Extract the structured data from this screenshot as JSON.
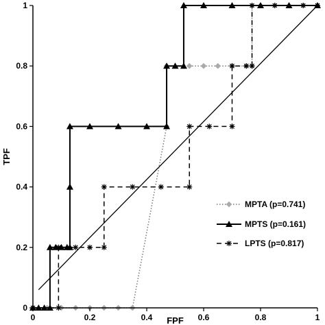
{
  "chart_data": {
    "type": "line",
    "xlabel": "FPF",
    "ylabel": "TPF",
    "xlim": [
      0,
      1
    ],
    "ylim": [
      0,
      1
    ],
    "x_ticks": [
      "0",
      "0.2",
      "0.4",
      "0.6",
      "0.8",
      "1"
    ],
    "y_ticks": [
      "0",
      "0.2",
      "0.4",
      "0.6",
      "0.8",
      "1"
    ],
    "grid": false,
    "legend_position": "bottom-right",
    "reference_line": {
      "x": [
        0.02,
        1.0
      ],
      "y": [
        0.06,
        1.0
      ]
    },
    "series": [
      {
        "name": "MPTA (p=0.741)",
        "line_style": "dotted",
        "marker": "diamond",
        "color": "#aaaaaa",
        "x": [
          0,
          0.05,
          0.1,
          0.15,
          0.2,
          0.25,
          0.3,
          0.35,
          0.35,
          0.47,
          0.47,
          0.55,
          0.6,
          0.65,
          0.7,
          0.75,
          0.77,
          0.77,
          0.8,
          0.85,
          0.9,
          0.95,
          1.0
        ],
        "y": [
          0,
          0,
          0,
          0,
          0,
          0,
          0,
          0,
          0.0,
          0.6,
          0.8,
          0.8,
          0.8,
          0.8,
          0.8,
          0.8,
          0.8,
          1.0,
          1.0,
          1.0,
          1.0,
          1.0,
          1.0
        ]
      },
      {
        "name": "MPTS (p=0.161)",
        "line_style": "solid",
        "marker": "triangle",
        "color": "#000000",
        "x": [
          0,
          0.02,
          0.04,
          0.06,
          0.06,
          0.08,
          0.1,
          0.12,
          0.13,
          0.13,
          0.13,
          0.2,
          0.3,
          0.4,
          0.47,
          0.47,
          0.5,
          0.53,
          0.53,
          0.6,
          0.7,
          0.8,
          0.9,
          1.0
        ],
        "y": [
          0,
          0,
          0,
          0,
          0.2,
          0.2,
          0.2,
          0.2,
          0.2,
          0.4,
          0.6,
          0.6,
          0.6,
          0.6,
          0.6,
          0.8,
          0.8,
          0.8,
          1.0,
          1.0,
          1.0,
          1.0,
          1.0,
          1.0
        ]
      },
      {
        "name": "LPTS (p=0.817)",
        "line_style": "dashed",
        "marker": "asterisk",
        "color": "#000000",
        "x": [
          0,
          0.09,
          0.09,
          0.15,
          0.2,
          0.25,
          0.25,
          0.35,
          0.45,
          0.55,
          0.55,
          0.62,
          0.7,
          0.7,
          0.75,
          0.77,
          0.77,
          0.85,
          0.95,
          1.0
        ],
        "y": [
          0,
          0,
          0.2,
          0.2,
          0.2,
          0.2,
          0.4,
          0.4,
          0.4,
          0.4,
          0.6,
          0.6,
          0.6,
          0.8,
          0.8,
          0.8,
          1.0,
          1.0,
          1.0,
          1.0
        ]
      }
    ]
  }
}
